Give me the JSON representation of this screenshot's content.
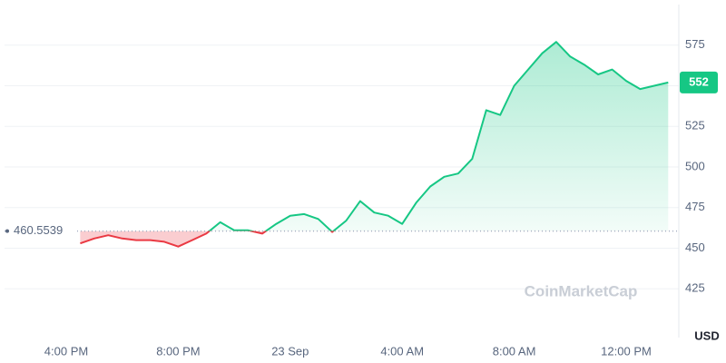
{
  "chart_data": {
    "type": "line",
    "categories": [
      "4:00 PM",
      null,
      null,
      null,
      null,
      null,
      null,
      null,
      "8:00 PM",
      null,
      null,
      null,
      null,
      null,
      null,
      null,
      "23 Sep",
      null,
      null,
      null,
      null,
      null,
      null,
      null,
      "4:00 AM",
      null,
      null,
      null,
      null,
      null,
      null,
      null,
      "8:00 AM",
      null,
      null,
      null,
      null,
      null,
      null,
      null,
      "12:00 PM",
      null,
      null,
      null
    ],
    "values": [
      null,
      453,
      456,
      458,
      456,
      455,
      455,
      454,
      451,
      455,
      459,
      466,
      461,
      461,
      459,
      465,
      470,
      471,
      468,
      460,
      467,
      479,
      472,
      470,
      465,
      478,
      488,
      494,
      496,
      505,
      535,
      532,
      550,
      560,
      570,
      577,
      568,
      563,
      557,
      560,
      553,
      548,
      550,
      552
    ],
    "ylim": [
      395,
      600
    ],
    "yticks": [
      425,
      450,
      475,
      500,
      525,
      550,
      575
    ],
    "grid": true,
    "baseline": 460.5539,
    "current_price": 552,
    "up_color": "#16c784",
    "down_color": "#ea3943",
    "y_unit": "USD",
    "watermark": "CoinMarketCap"
  }
}
